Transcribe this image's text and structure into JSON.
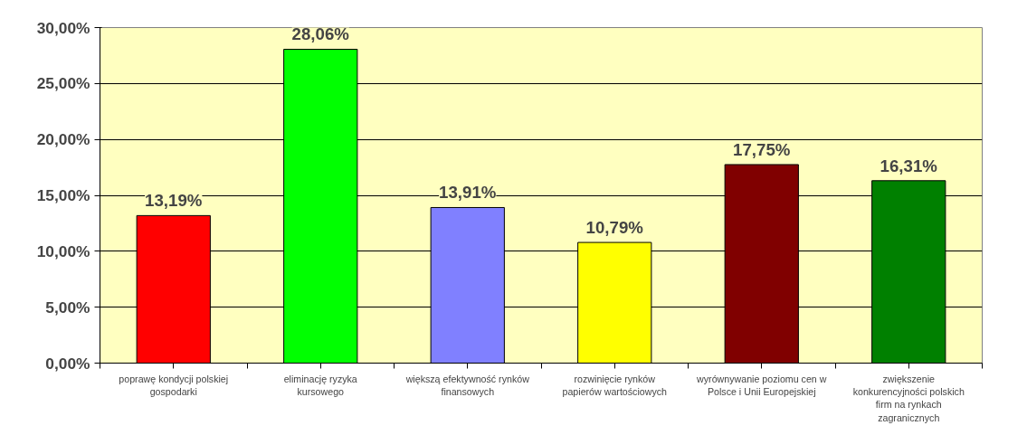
{
  "chart_data": {
    "type": "bar",
    "categories": [
      "poprawę kondycji polskiej gospodarki",
      "eliminację ryzyka kursowego",
      "większą efektywność rynków finansowych",
      "rozwinięcie rynków papierów wartościowych",
      "wyrównywanie poziomu cen w Polsce i Unii Europejskiej",
      "zwiększenie konkurencyjności polskich firm na rynkach zagranicznych"
    ],
    "values": [
      13.19,
      28.06,
      13.91,
      10.79,
      17.75,
      16.31
    ],
    "colors": [
      "#ff0000",
      "#00ff00",
      "#8080ff",
      "#ffff00",
      "#800000",
      "#008000"
    ],
    "value_labels": [
      "13,19%",
      "28,06%",
      "13,91%",
      "10,79%",
      "17,75%",
      "16,31%"
    ],
    "ylim": [
      0,
      30
    ],
    "yticks": [
      {
        "value": 0,
        "label": "0,00%"
      },
      {
        "value": 5,
        "label": "5,00%"
      },
      {
        "value": 10,
        "label": "10,00%"
      },
      {
        "value": 15,
        "label": "15,00%"
      },
      {
        "value": 20,
        "label": "20,00%"
      },
      {
        "value": 25,
        "label": "25,00%"
      },
      {
        "value": 30,
        "label": "30,00%"
      }
    ],
    "grid": "y"
  }
}
